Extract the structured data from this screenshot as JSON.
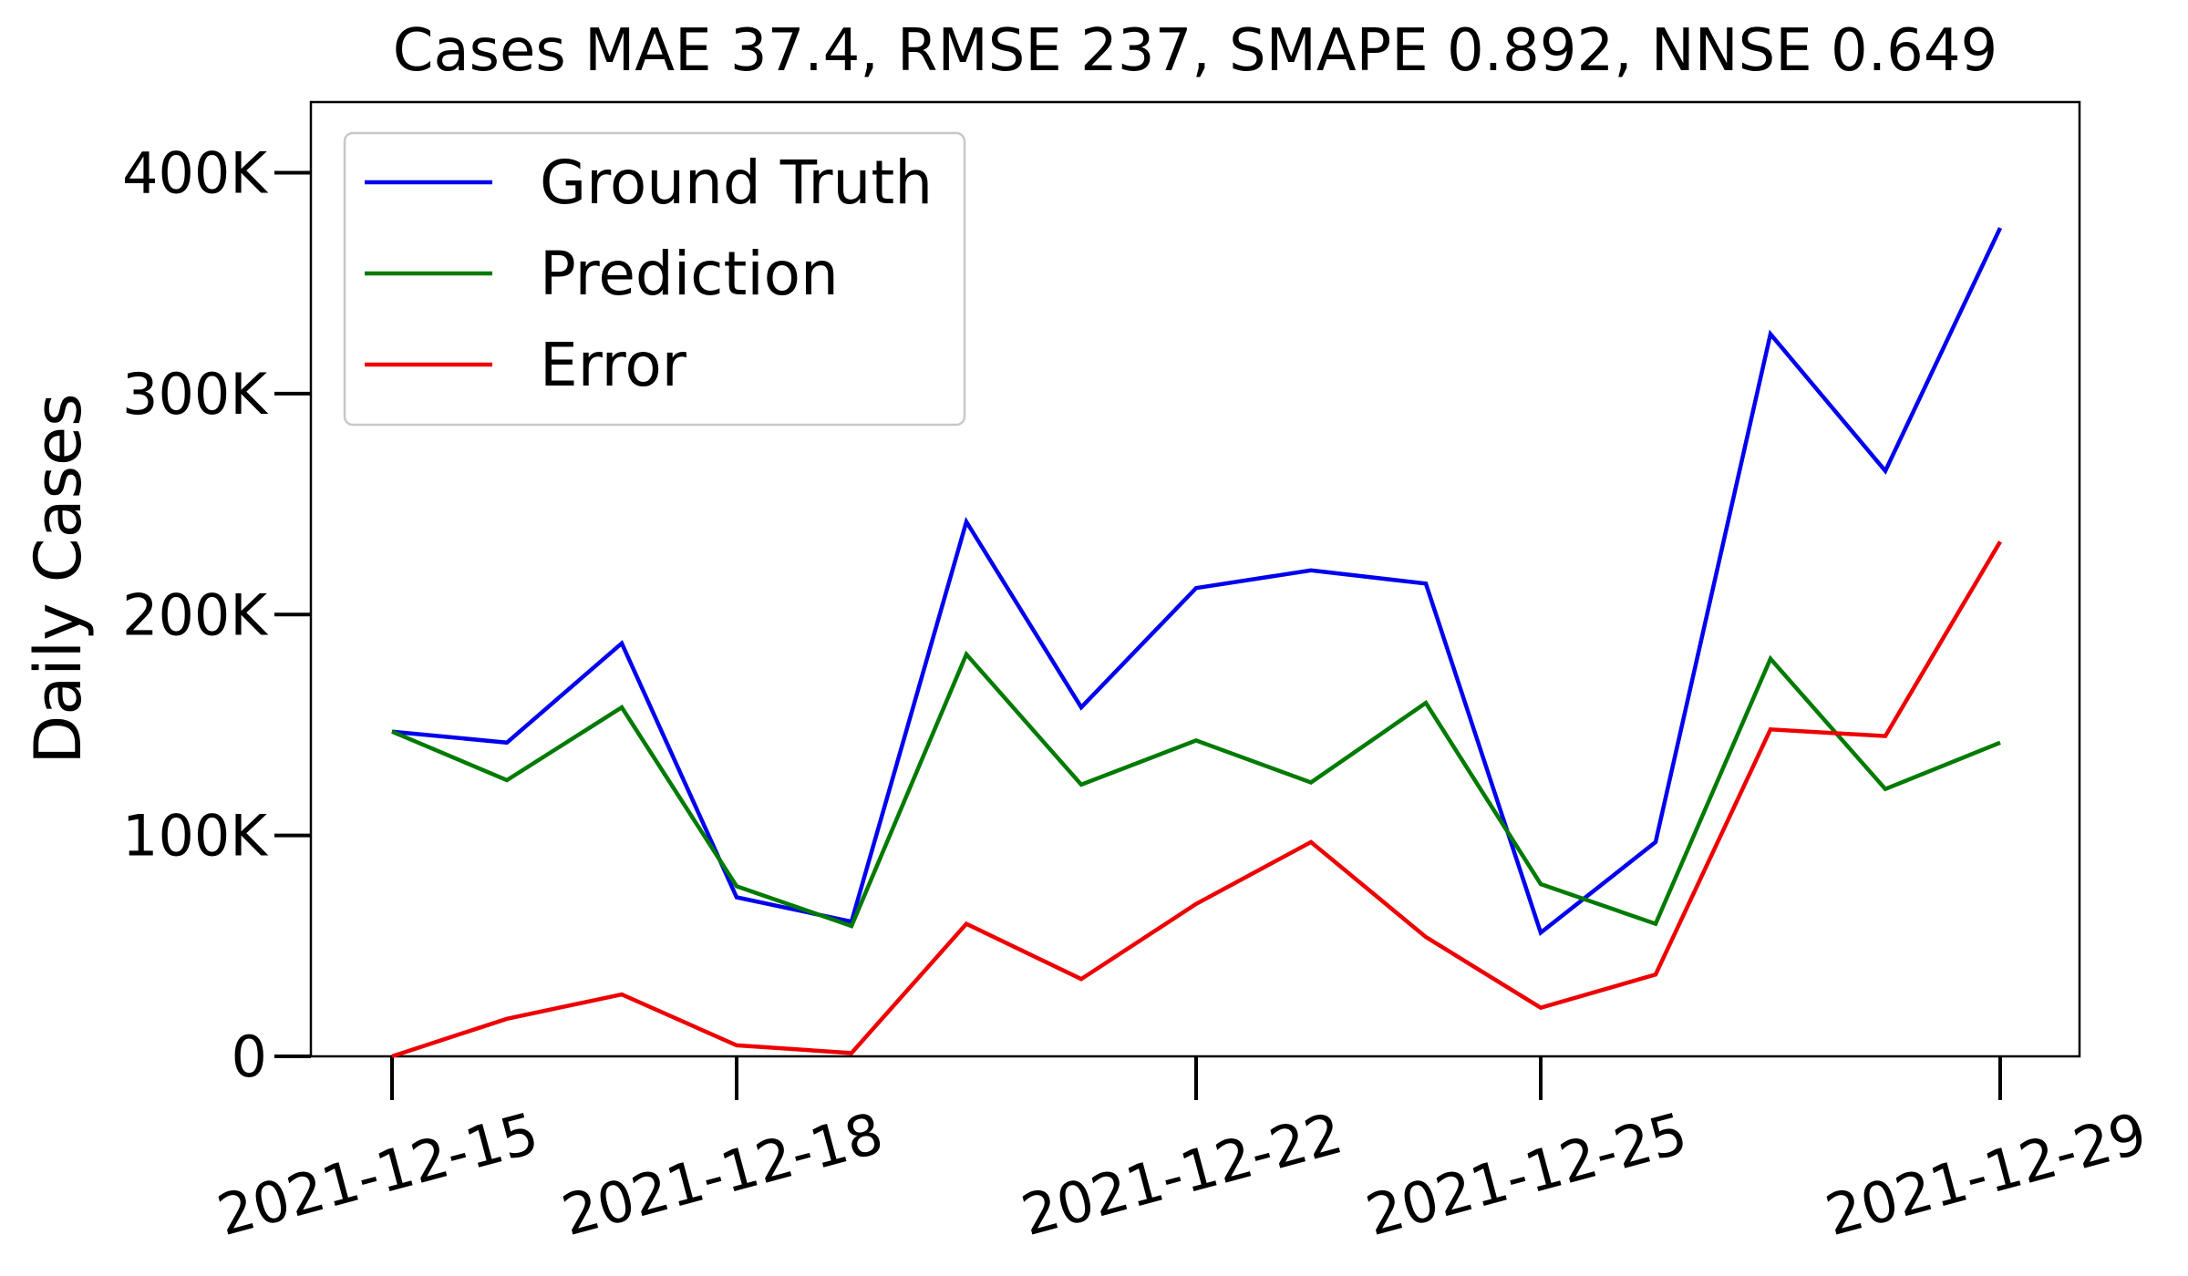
{
  "chart_data": {
    "type": "line",
    "title": "Cases MAE 37.4, RMSE 237, SMAPE 0.892, NNSE 0.649",
    "xlabel": "",
    "ylabel": "Daily Cases",
    "x": [
      "2021-12-15",
      "2021-12-16",
      "2021-12-17",
      "2021-12-18",
      "2021-12-19",
      "2021-12-20",
      "2021-12-21",
      "2021-12-22",
      "2021-12-23",
      "2021-12-24",
      "2021-12-25",
      "2021-12-26",
      "2021-12-27",
      "2021-12-28",
      "2021-12-29"
    ],
    "xticks": [
      "2021-12-15",
      "2021-12-18",
      "2021-12-22",
      "2021-12-25",
      "2021-12-29"
    ],
    "ylim": [
      0,
      432000
    ],
    "yticks": [
      0,
      100000,
      200000,
      300000,
      400000
    ],
    "ytick_labels": [
      "0",
      "100K",
      "200K",
      "300K",
      "400K"
    ],
    "legend": "top-left",
    "grid": false,
    "series": [
      {
        "name": "Ground Truth",
        "color": "#0000ee",
        "values": [
          147000,
          142000,
          187000,
          72000,
          61000,
          242000,
          158000,
          212000,
          220000,
          214000,
          56000,
          97000,
          327000,
          265000,
          375000
        ]
      },
      {
        "name": "Prediction",
        "color": "#007a00",
        "values": [
          147000,
          125000,
          158000,
          77000,
          59000,
          182000,
          123000,
          143000,
          124000,
          160000,
          78000,
          60000,
          180000,
          121000,
          142000
        ]
      },
      {
        "name": "Error",
        "color": "#ee0000",
        "values": [
          0,
          17000,
          28000,
          5000,
          1500,
          60000,
          35000,
          69000,
          97000,
          54000,
          22000,
          37000,
          148000,
          145000,
          233000
        ]
      }
    ]
  }
}
